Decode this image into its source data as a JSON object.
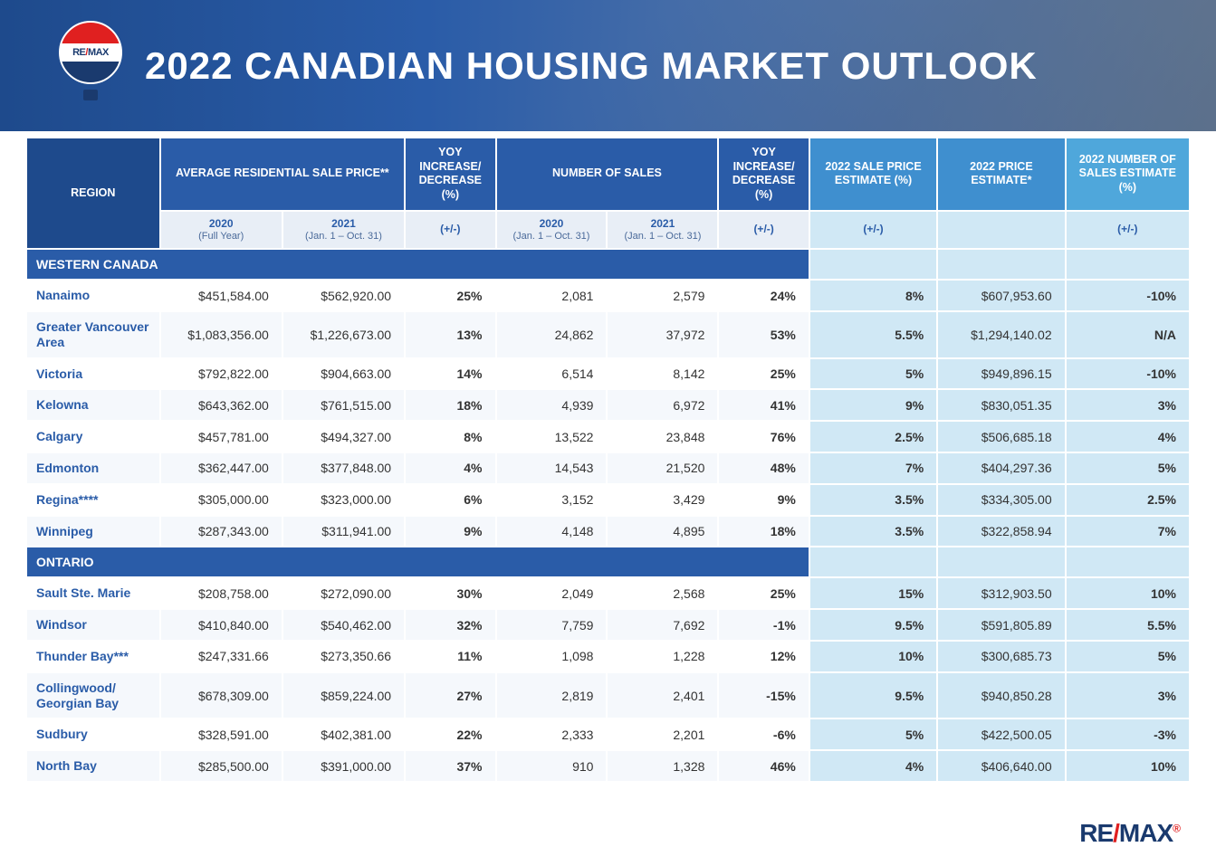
{
  "hero": {
    "title": "2022 CANADIAN HOUSING MARKET OUTLOOK",
    "logo_text_1": "RE",
    "logo_text_slash": "/",
    "logo_text_2": "MAX"
  },
  "colors": {
    "header_dark": "#1e4a8c",
    "header_mid": "#2a5ca8",
    "header_light": "#3f8fcf",
    "header_lighter": "#4fa7db",
    "row_alt": "#f5f8fc",
    "tinted_cell": "#d0e8f5",
    "text_region": "#2a5ca8",
    "remax_red": "#e02020",
    "remax_blue": "#1a3a6e"
  },
  "fonts": {
    "hero_title_pt": 42,
    "header_pt": 12.5,
    "body_pt": 14
  },
  "table": {
    "type": "table",
    "columns_top": [
      {
        "label": "REGION",
        "rowspan": 2,
        "class": "darker",
        "align": "center"
      },
      {
        "label": "AVERAGE RESIDENTIAL SALE PRICE**",
        "colspan": 2,
        "class": ""
      },
      {
        "label": "YOY INCREASE/ DECREASE (%)",
        "rowspan": 1,
        "class": ""
      },
      {
        "label": "NUMBER OF SALES",
        "colspan": 2,
        "class": ""
      },
      {
        "label": "YOY INCREASE/ DECREASE (%)",
        "rowspan": 1,
        "class": ""
      },
      {
        "label": "2022 SALE PRICE ESTIMATE (%)",
        "rowspan": 1,
        "class": "light"
      },
      {
        "label": "2022 PRICE ESTIMATE*",
        "rowspan": 1,
        "class": "light"
      },
      {
        "label": "2022 NUMBER OF SALES ESTIMATE (%)",
        "rowspan": 1,
        "class": "lighter"
      }
    ],
    "columns_sub": [
      {
        "label": "2020",
        "sub": "(Full Year)"
      },
      {
        "label": "2021",
        "sub": "(Jan. 1 – Oct. 31)"
      },
      {
        "label": "(+/-)",
        "sub": ""
      },
      {
        "label": "2020",
        "sub": "(Jan. 1 – Oct. 31)"
      },
      {
        "label": "2021",
        "sub": "(Jan. 1 – Oct. 31)"
      },
      {
        "label": "(+/-)",
        "sub": ""
      },
      {
        "label": "(+/-)",
        "sub": "",
        "tinted": true
      },
      {
        "label": "",
        "sub": "",
        "tinted": true
      },
      {
        "label": "(+/-)",
        "sub": "",
        "tinted": true
      }
    ],
    "sections": [
      {
        "title": "WESTERN CANADA",
        "rows": [
          {
            "region": "Nanaimo",
            "p20": "$451,584.00",
            "p21": "$562,920.00",
            "yp": "25%",
            "s20": "2,081",
            "s21": "2,579",
            "ys": "24%",
            "e1": "8%",
            "e2": "$607,953.60",
            "e3": "-10%"
          },
          {
            "region": "Greater Vancouver Area",
            "p20": "$1,083,356.00",
            "p21": "$1,226,673.00",
            "yp": "13%",
            "s20": "24,862",
            "s21": "37,972",
            "ys": "53%",
            "e1": "5.5%",
            "e2": "$1,294,140.02",
            "e3": "N/A"
          },
          {
            "region": "Victoria",
            "p20": "$792,822.00",
            "p21": "$904,663.00",
            "yp": "14%",
            "s20": "6,514",
            "s21": "8,142",
            "ys": "25%",
            "e1": "5%",
            "e2": "$949,896.15",
            "e3": "-10%"
          },
          {
            "region": "Kelowna",
            "p20": "$643,362.00",
            "p21": "$761,515.00",
            "yp": "18%",
            "s20": "4,939",
            "s21": "6,972",
            "ys": "41%",
            "e1": "9%",
            "e2": "$830,051.35",
            "e3": "3%"
          },
          {
            "region": "Calgary",
            "p20": "$457,781.00",
            "p21": "$494,327.00",
            "yp": "8%",
            "s20": "13,522",
            "s21": "23,848",
            "ys": "76%",
            "e1": "2.5%",
            "e2": "$506,685.18",
            "e3": "4%"
          },
          {
            "region": "Edmonton",
            "p20": "$362,447.00",
            "p21": "$377,848.00",
            "yp": "4%",
            "s20": "14,543",
            "s21": "21,520",
            "ys": "48%",
            "e1": "7%",
            "e2": "$404,297.36",
            "e3": "5%"
          },
          {
            "region": "Regina****",
            "p20": "$305,000.00",
            "p21": "$323,000.00",
            "yp": "6%",
            "s20": "3,152",
            "s21": "3,429",
            "ys": "9%",
            "e1": "3.5%",
            "e2": "$334,305.00",
            "e3": "2.5%"
          },
          {
            "region": "Winnipeg",
            "p20": "$287,343.00",
            "p21": "$311,941.00",
            "yp": "9%",
            "s20": "4,148",
            "s21": "4,895",
            "ys": "18%",
            "e1": "3.5%",
            "e2": "$322,858.94",
            "e3": "7%"
          }
        ]
      },
      {
        "title": "ONTARIO",
        "rows": [
          {
            "region": "Sault Ste. Marie",
            "p20": "$208,758.00",
            "p21": "$272,090.00",
            "yp": "30%",
            "s20": "2,049",
            "s21": "2,568",
            "ys": "25%",
            "e1": "15%",
            "e2": "$312,903.50",
            "e3": "10%"
          },
          {
            "region": "Windsor",
            "p20": "$410,840.00",
            "p21": "$540,462.00",
            "yp": "32%",
            "s20": "7,759",
            "s21": "7,692",
            "ys": "-1%",
            "e1": "9.5%",
            "e2": "$591,805.89",
            "e3": "5.5%"
          },
          {
            "region": "Thunder Bay***",
            "p20": "$247,331.66",
            "p21": "$273,350.66",
            "yp": "11%",
            "s20": "1,098",
            "s21": "1,228",
            "ys": "12%",
            "e1": "10%",
            "e2": "$300,685.73",
            "e3": "5%"
          },
          {
            "region": "Collingwood/ Georgian Bay",
            "p20": "$678,309.00",
            "p21": "$859,224.00",
            "yp": "27%",
            "s20": "2,819",
            "s21": "2,401",
            "ys": "-15%",
            "e1": "9.5%",
            "e2": "$940,850.28",
            "e3": "3%"
          },
          {
            "region": "Sudbury",
            "p20": "$328,591.00",
            "p21": "$402,381.00",
            "yp": "22%",
            "s20": "2,333",
            "s21": "2,201",
            "ys": "-6%",
            "e1": "5%",
            "e2": "$422,500.05",
            "e3": "-3%"
          },
          {
            "region": "North Bay",
            "p20": "$285,500.00",
            "p21": "$391,000.00",
            "yp": "37%",
            "s20": "910",
            "s21": "1,328",
            "ys": "46%",
            "e1": "4%",
            "e2": "$406,640.00",
            "e3": "10%"
          }
        ]
      }
    ]
  },
  "footer": {
    "logo_1": "RE",
    "logo_slash": "/",
    "logo_2": "MAX",
    "reg": "®"
  }
}
